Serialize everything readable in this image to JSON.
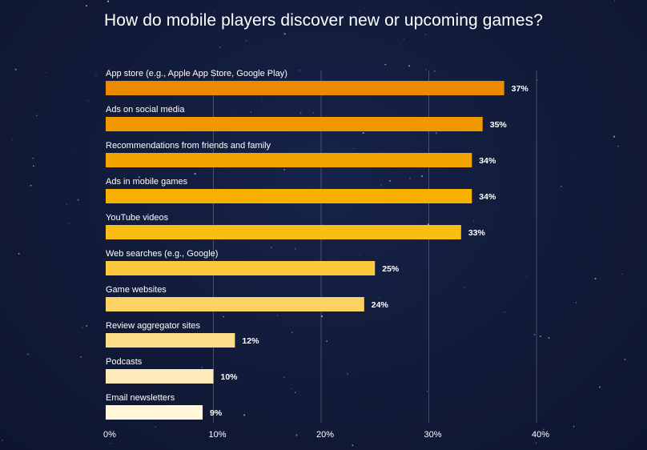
{
  "chart_data": {
    "type": "bar",
    "orientation": "horizontal",
    "title": "How do mobile players discover new or upcoming games?",
    "categories": [
      "App store (e.g., Apple App Store, Google Play)",
      "Ads on social media",
      "Recommendations from friends and family",
      "Ads in mobile games",
      "YouTube videos",
      "Web searches (e.g., Google)",
      "Game websites",
      "Review aggregator sites",
      "Podcasts",
      "Email newsletters"
    ],
    "values": [
      37,
      35,
      34,
      34,
      33,
      25,
      24,
      12,
      10,
      9
    ],
    "value_labels": [
      "37%",
      "35%",
      "34%",
      "34%",
      "33%",
      "25%",
      "24%",
      "12%",
      "10%",
      "9%"
    ],
    "bar_colors": [
      "#ea8a00",
      "#f09700",
      "#f3a400",
      "#f7b000",
      "#f9bd14",
      "#fbc93c",
      "#fcd362",
      "#fddd8a",
      "#feeab8",
      "#fff6dc"
    ],
    "xlim": [
      0,
      40
    ],
    "xticks": [
      0,
      10,
      20,
      30,
      40
    ],
    "xtick_labels": [
      "0%",
      "10%",
      "20%",
      "30%",
      "40%"
    ],
    "grid": true,
    "legend": "none",
    "xlabel": "",
    "ylabel": ""
  }
}
